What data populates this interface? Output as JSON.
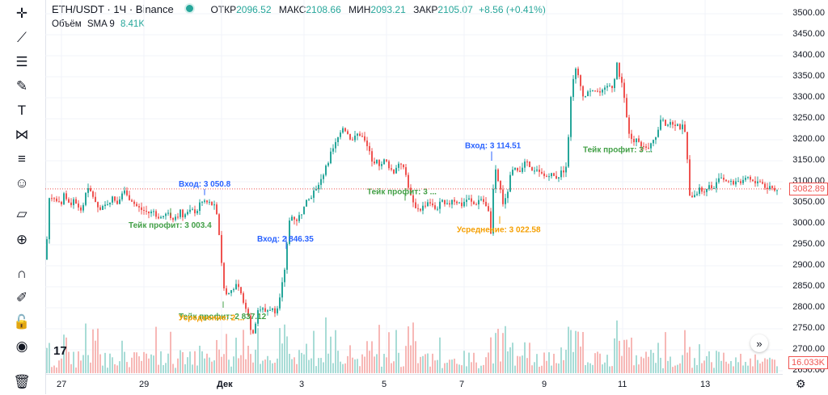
{
  "legend": {
    "symbol": "ETH/USDT · 1Ч · Binance",
    "open_label": "ОТКР",
    "open": "2096.52",
    "high_label": "МАКС",
    "high": "2108.66",
    "low_label": "МИН",
    "low": "2093.21",
    "close_label": "ЗАКР",
    "close": "2105.07",
    "change": "+8.56 (+0.41%)",
    "volume_label": "Объём",
    "volume_ma": "SMA 9",
    "volume_value": "8.41K"
  },
  "price_scale": {
    "ticks": [
      "3500.00",
      "3450.00",
      "3400.00",
      "3350.00",
      "3300.00",
      "3250.00",
      "3200.00",
      "3150.00",
      "3100.00",
      "3050.00",
      "3000.00",
      "2950.00",
      "2900.00",
      "2850.00",
      "2800.00",
      "2750.00",
      "2700.00",
      "2650.00"
    ],
    "last_price_tag": "3082.89",
    "volume_tag": "16.033K"
  },
  "time_scale": {
    "ticks": [
      "27",
      "29",
      "Дек",
      "3",
      "5",
      "7",
      "9",
      "11",
      "13"
    ]
  },
  "annotations": [
    {
      "text": "Вход: 3 050.8",
      "kind": "entry"
    },
    {
      "text": "Тейк профит: 3 003.4",
      "kind": "take"
    },
    {
      "text": "Вход: 2 846.35",
      "kind": "entry"
    },
    {
      "text": "Тейк профит: 2 837.12",
      "kind": "take"
    },
    {
      "text": "Усреднение: 2 ...",
      "kind": "avg"
    },
    {
      "text": "Тейк профит: 3 ...",
      "kind": "take"
    },
    {
      "text": "Вход: 3 114.51",
      "kind": "entry"
    },
    {
      "text": "Усреднение: 3 022.58",
      "kind": "avg"
    },
    {
      "text": "Тейк профит: 3 ...",
      "kind": "take"
    }
  ],
  "colors": {
    "up": "#26a69a",
    "down": "#ef5350",
    "entry": "#2962ff",
    "take": "#43a047",
    "avg": "#f59f00"
  },
  "toolbar": {
    "icons": [
      "crosshair-icon",
      "trend-line-icon",
      "horizontal-lines-icon",
      "brush-icon",
      "text-icon",
      "pattern-icon",
      "fib-icon",
      "emoji-icon",
      "ruler-icon",
      "zoom-in-icon",
      "magnet-icon",
      "lock-drawing-icon",
      "lock-icon",
      "eye-icon",
      "trash-icon"
    ]
  },
  "chart_data": {
    "type": "candlestick",
    "title": "ETH/USDT · 1Ч · Binance",
    "x_labels": [
      "27",
      "29",
      "Дек",
      "3",
      "5",
      "7",
      "9",
      "11",
      "13"
    ],
    "ylim": [
      2650,
      3500
    ],
    "path_close": [
      [
        0,
        2915
      ],
      [
        3,
        3060
      ],
      [
        8,
        3065
      ],
      [
        14,
        3050
      ],
      [
        19,
        3040
      ],
      [
        22,
        3070
      ],
      [
        26,
        3060
      ],
      [
        30,
        3045
      ],
      [
        35,
        3060
      ],
      [
        40,
        3040
      ],
      [
        45,
        3030
      ],
      [
        50,
        3080
      ],
      [
        55,
        3075
      ],
      [
        60,
        3060
      ],
      [
        66,
        3030
      ],
      [
        72,
        3040
      ],
      [
        78,
        3055
      ],
      [
        82,
        3060
      ],
      [
        88,
        3050
      ],
      [
        92,
        3070
      ],
      [
        96,
        3085
      ],
      [
        100,
        3065
      ],
      [
        105,
        3060
      ],
      [
        110,
        3045
      ],
      [
        116,
        3035
      ],
      [
        122,
        3030
      ],
      [
        128,
        3025
      ],
      [
        133,
        3030
      ],
      [
        138,
        3018
      ],
      [
        143,
        3015
      ],
      [
        147,
        3022
      ],
      [
        152,
        3020
      ],
      [
        157,
        3015
      ],
      [
        162,
        3020
      ],
      [
        166,
        3028
      ],
      [
        170,
        3020
      ],
      [
        175,
        3025
      ],
      [
        180,
        3030
      ],
      [
        186,
        3030
      ],
      [
        190,
        3045
      ],
      [
        195,
        3055
      ],
      [
        199,
        3050
      ],
      [
        204,
        3048
      ],
      [
        208,
        3040
      ],
      [
        212,
        3010
      ],
      [
        215,
        2960
      ],
      [
        218,
        2870
      ],
      [
        221,
        2835
      ],
      [
        224,
        2830
      ],
      [
        228,
        2840
      ],
      [
        232,
        2850
      ],
      [
        236,
        2850
      ],
      [
        240,
        2835
      ],
      [
        244,
        2810
      ],
      [
        248,
        2800
      ],
      [
        251,
        2780
      ],
      [
        254,
        2730
      ],
      [
        258,
        2760
      ],
      [
        262,
        2790
      ],
      [
        266,
        2800
      ],
      [
        270,
        2790
      ],
      [
        274,
        2795
      ],
      [
        278,
        2800
      ],
      [
        282,
        2790
      ],
      [
        286,
        2805
      ],
      [
        290,
        2840
      ],
      [
        293,
        2880
      ],
      [
        296,
        2900
      ],
      [
        299,
        2980
      ],
      [
        302,
        3020
      ],
      [
        306,
        3015
      ],
      [
        310,
        3010
      ],
      [
        314,
        3020
      ],
      [
        318,
        3035
      ],
      [
        322,
        3050
      ],
      [
        326,
        3060
      ],
      [
        330,
        3075
      ],
      [
        334,
        3080
      ],
      [
        338,
        3100
      ],
      [
        342,
        3105
      ],
      [
        346,
        3140
      ],
      [
        350,
        3155
      ],
      [
        354,
        3175
      ],
      [
        358,
        3190
      ],
      [
        362,
        3210
      ],
      [
        366,
        3235
      ],
      [
        370,
        3225
      ],
      [
        374,
        3210
      ],
      [
        378,
        3200
      ],
      [
        382,
        3205
      ],
      [
        386,
        3215
      ],
      [
        390,
        3210
      ],
      [
        394,
        3195
      ],
      [
        398,
        3180
      ],
      [
        402,
        3155
      ],
      [
        406,
        3150
      ],
      [
        410,
        3145
      ],
      [
        414,
        3140
      ],
      [
        418,
        3150
      ],
      [
        422,
        3145
      ],
      [
        426,
        3130
      ],
      [
        430,
        3125
      ],
      [
        434,
        3140
      ],
      [
        438,
        3150
      ],
      [
        442,
        3130
      ],
      [
        446,
        3110
      ],
      [
        450,
        3070
      ],
      [
        454,
        3045
      ],
      [
        458,
        3040
      ],
      [
        462,
        3035
      ],
      [
        466,
        3040
      ],
      [
        470,
        3050
      ],
      [
        474,
        3055
      ],
      [
        478,
        3040
      ],
      [
        482,
        3035
      ],
      [
        486,
        3045
      ],
      [
        490,
        3050
      ],
      [
        494,
        3040
      ],
      [
        498,
        3045
      ],
      [
        502,
        3060
      ],
      [
        506,
        3055
      ],
      [
        510,
        3050
      ],
      [
        514,
        3045
      ],
      [
        518,
        3055
      ],
      [
        522,
        3060
      ],
      [
        526,
        3050
      ],
      [
        530,
        3045
      ],
      [
        534,
        3055
      ],
      [
        538,
        3060
      ],
      [
        542,
        3050
      ],
      [
        546,
        3030
      ],
      [
        548,
        3020
      ],
      [
        550,
        2980
      ],
      [
        552,
        3050
      ],
      [
        555,
        3130
      ],
      [
        558,
        3110
      ],
      [
        562,
        3080
      ],
      [
        566,
        3040
      ],
      [
        570,
        3070
      ],
      [
        574,
        3110
      ],
      [
        578,
        3130
      ],
      [
        582,
        3125
      ],
      [
        586,
        3130
      ],
      [
        590,
        3140
      ],
      [
        594,
        3145
      ],
      [
        598,
        3130
      ],
      [
        602,
        3120
      ],
      [
        606,
        3125
      ],
      [
        610,
        3120
      ],
      [
        614,
        3115
      ],
      [
        618,
        3110
      ],
      [
        622,
        3120
      ],
      [
        626,
        3115
      ],
      [
        630,
        3110
      ],
      [
        634,
        3115
      ],
      [
        638,
        3125
      ],
      [
        642,
        3120
      ],
      [
        646,
        3210
      ],
      [
        650,
        3330
      ],
      [
        654,
        3370
      ],
      [
        658,
        3350
      ],
      [
        662,
        3320
      ],
      [
        666,
        3300
      ],
      [
        670,
        3310
      ],
      [
        674,
        3325
      ],
      [
        678,
        3320
      ],
      [
        682,
        3315
      ],
      [
        686,
        3310
      ],
      [
        690,
        3315
      ],
      [
        694,
        3325
      ],
      [
        698,
        3330
      ],
      [
        702,
        3325
      ],
      [
        705,
        3400
      ],
      [
        708,
        3350
      ],
      [
        712,
        3340
      ],
      [
        715,
        3300
      ],
      [
        718,
        3250
      ],
      [
        721,
        3210
      ],
      [
        724,
        3200
      ],
      [
        728,
        3195
      ],
      [
        732,
        3205
      ],
      [
        736,
        3190
      ],
      [
        740,
        3180
      ],
      [
        744,
        3170
      ],
      [
        748,
        3195
      ],
      [
        752,
        3205
      ],
      [
        756,
        3210
      ],
      [
        760,
        3250
      ],
      [
        764,
        3240
      ],
      [
        768,
        3235
      ],
      [
        772,
        3245
      ],
      [
        776,
        3240
      ],
      [
        780,
        3238
      ],
      [
        784,
        3230
      ],
      [
        788,
        3230
      ],
      [
        792,
        3195
      ],
      [
        794,
        3120
      ],
      [
        796,
        3060
      ],
      [
        800,
        3070
      ],
      [
        804,
        3075
      ],
      [
        808,
        3080
      ],
      [
        812,
        3078
      ],
      [
        816,
        3085
      ],
      [
        820,
        3090
      ],
      [
        824,
        3085
      ],
      [
        828,
        3095
      ],
      [
        832,
        3115
      ],
      [
        836,
        3110
      ],
      [
        840,
        3105
      ],
      [
        844,
        3100
      ],
      [
        848,
        3095
      ],
      [
        852,
        3100
      ],
      [
        856,
        3105
      ],
      [
        860,
        3095
      ],
      [
        864,
        3100
      ],
      [
        868,
        3110
      ],
      [
        872,
        3100
      ],
      [
        876,
        3095
      ],
      [
        880,
        3105
      ],
      [
        884,
        3100
      ],
      [
        888,
        3090
      ],
      [
        892,
        3085
      ],
      [
        896,
        3090
      ],
      [
        900,
        3080
      ],
      [
        904,
        3083
      ]
    ]
  }
}
